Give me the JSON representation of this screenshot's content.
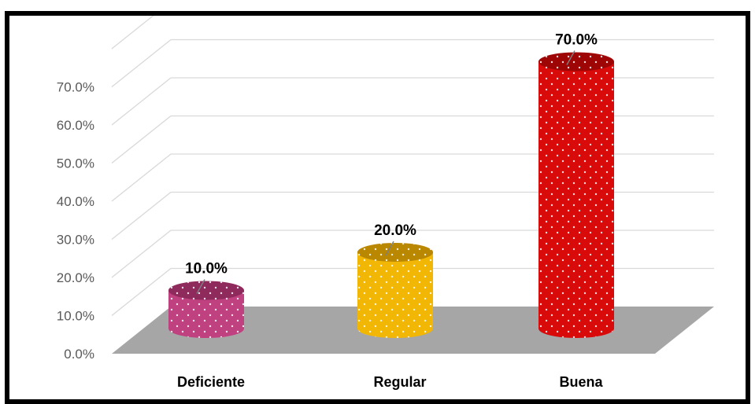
{
  "chart_data": {
    "type": "bar",
    "categories": [
      "Deficiente",
      "Regular",
      "Buena"
    ],
    "values": [
      10.0,
      20.0,
      70.0
    ],
    "data_labels": [
      "10.0%",
      "20.0%",
      "70.0%"
    ],
    "y_ticks": [
      "0.0%",
      "10.0%",
      "20.0%",
      "30.0%",
      "40.0%",
      "50.0%",
      "60.0%",
      "70.0%"
    ],
    "ylim": [
      0,
      80
    ],
    "grid": true,
    "style": "3d-cylinder",
    "colors": {
      "bars": [
        "#C0417F",
        "#F2B705",
        "#D80A0A"
      ],
      "bars_dark": [
        "#8E2A5C",
        "#B98700",
        "#9E0606"
      ],
      "floor": "#A6A6A6",
      "gridline": "#D9D9D9",
      "frame": "#000000"
    }
  }
}
